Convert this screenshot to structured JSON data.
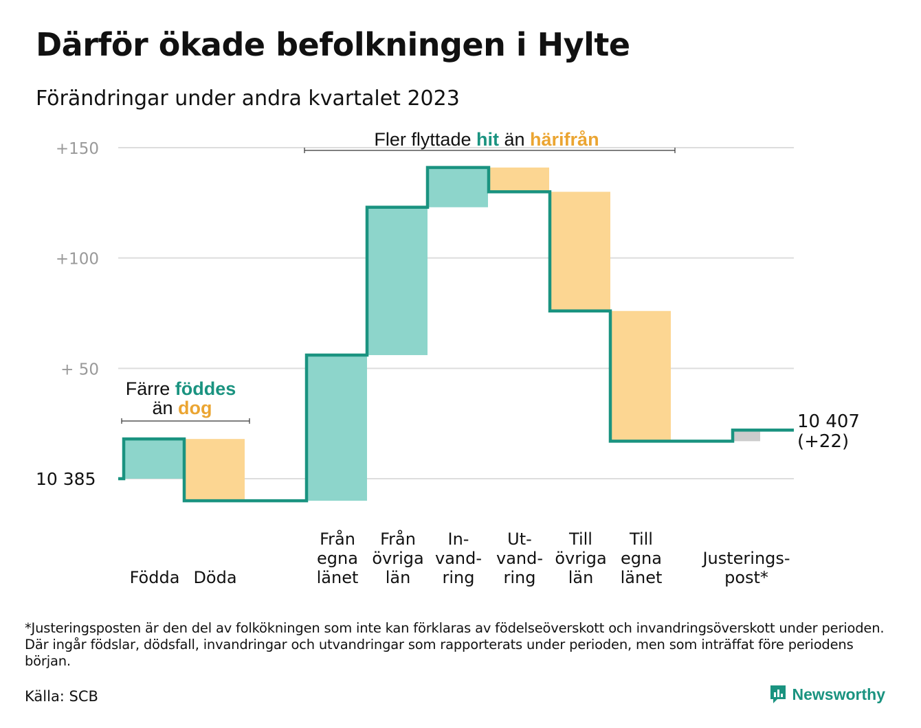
{
  "title": "Därför ökade befolkningen i Hylte",
  "subtitle": "Förändringar under andra kvartalet 2023",
  "colors": {
    "teal_line": "#1a9380",
    "teal_fill": "#8dd5cb",
    "orange_fill": "#fcd692",
    "orange_text": "#eba532",
    "teal_text": "#1a9380",
    "gray_fill": "#cccccc",
    "grid": "#dddddd",
    "axis_label": "#999999"
  },
  "chart_data": {
    "type": "waterfall",
    "start_value": 10385,
    "end_value": 10407,
    "y_range_change": [
      -10,
      150
    ],
    "y_ticks": [
      {
        "value": 150,
        "label": "+150"
      },
      {
        "value": 100,
        "label": "+100"
      },
      {
        "value": 50,
        "label": "+  50"
      },
      {
        "value": 0,
        "label": "10  385"
      }
    ],
    "steps": [
      {
        "category": "Födda",
        "change": 18,
        "kind": "in"
      },
      {
        "category": "Döda",
        "change": -28,
        "kind": "out"
      },
      {
        "category": "Från egna länet",
        "change": 66,
        "kind": "in"
      },
      {
        "category": "Från övriga län",
        "change": 67,
        "kind": "in"
      },
      {
        "category": "Invandring",
        "change": 18,
        "kind": "in"
      },
      {
        "category": "Utvandring",
        "change": -11,
        "kind": "out"
      },
      {
        "category": "Till övriga län",
        "change": -54,
        "kind": "out"
      },
      {
        "category": "Till egna länet",
        "change": -59,
        "kind": "out"
      },
      {
        "category": "Justeringspost*",
        "change": 5,
        "kind": "adjust"
      }
    ],
    "x_labels": [
      {
        "lines": [
          "Födda"
        ]
      },
      {
        "lines": [
          "Döda"
        ]
      },
      {
        "lines": [
          "Från",
          "egna",
          "länet"
        ]
      },
      {
        "lines": [
          "Från",
          "övriga",
          "län"
        ]
      },
      {
        "lines": [
          "In-",
          "vand-",
          "ring"
        ]
      },
      {
        "lines": [
          "Ut-",
          "vand-",
          "ring"
        ]
      },
      {
        "lines": [
          "Till",
          "övriga",
          "län"
        ]
      },
      {
        "lines": [
          "Till",
          "egna",
          "länet"
        ]
      },
      {
        "lines": [
          "Justerings-",
          "post*"
        ]
      }
    ],
    "end_label": {
      "line1": "10 407",
      "line2": "(+22)"
    },
    "annotations": {
      "births": {
        "part1": "Färre ",
        "highlight1": "föddes",
        "part2": "än ",
        "highlight2": "dog"
      },
      "migration": {
        "part1": "Fler flyttade ",
        "highlight1": "hit",
        "part2": " än ",
        "highlight2": "härifrån"
      }
    }
  },
  "footnote": "*Justeringsposten är den del av folkökningen som inte kan förklaras av födelseöverskott och invandringsöverskott under perioden. Där ingår födslar, dödsfall, invandringar och utvandringar som rapporterats under perioden, men som inträffat före periodens början.",
  "source": "Källa: SCB",
  "brand": {
    "name": "Newsworthy"
  }
}
